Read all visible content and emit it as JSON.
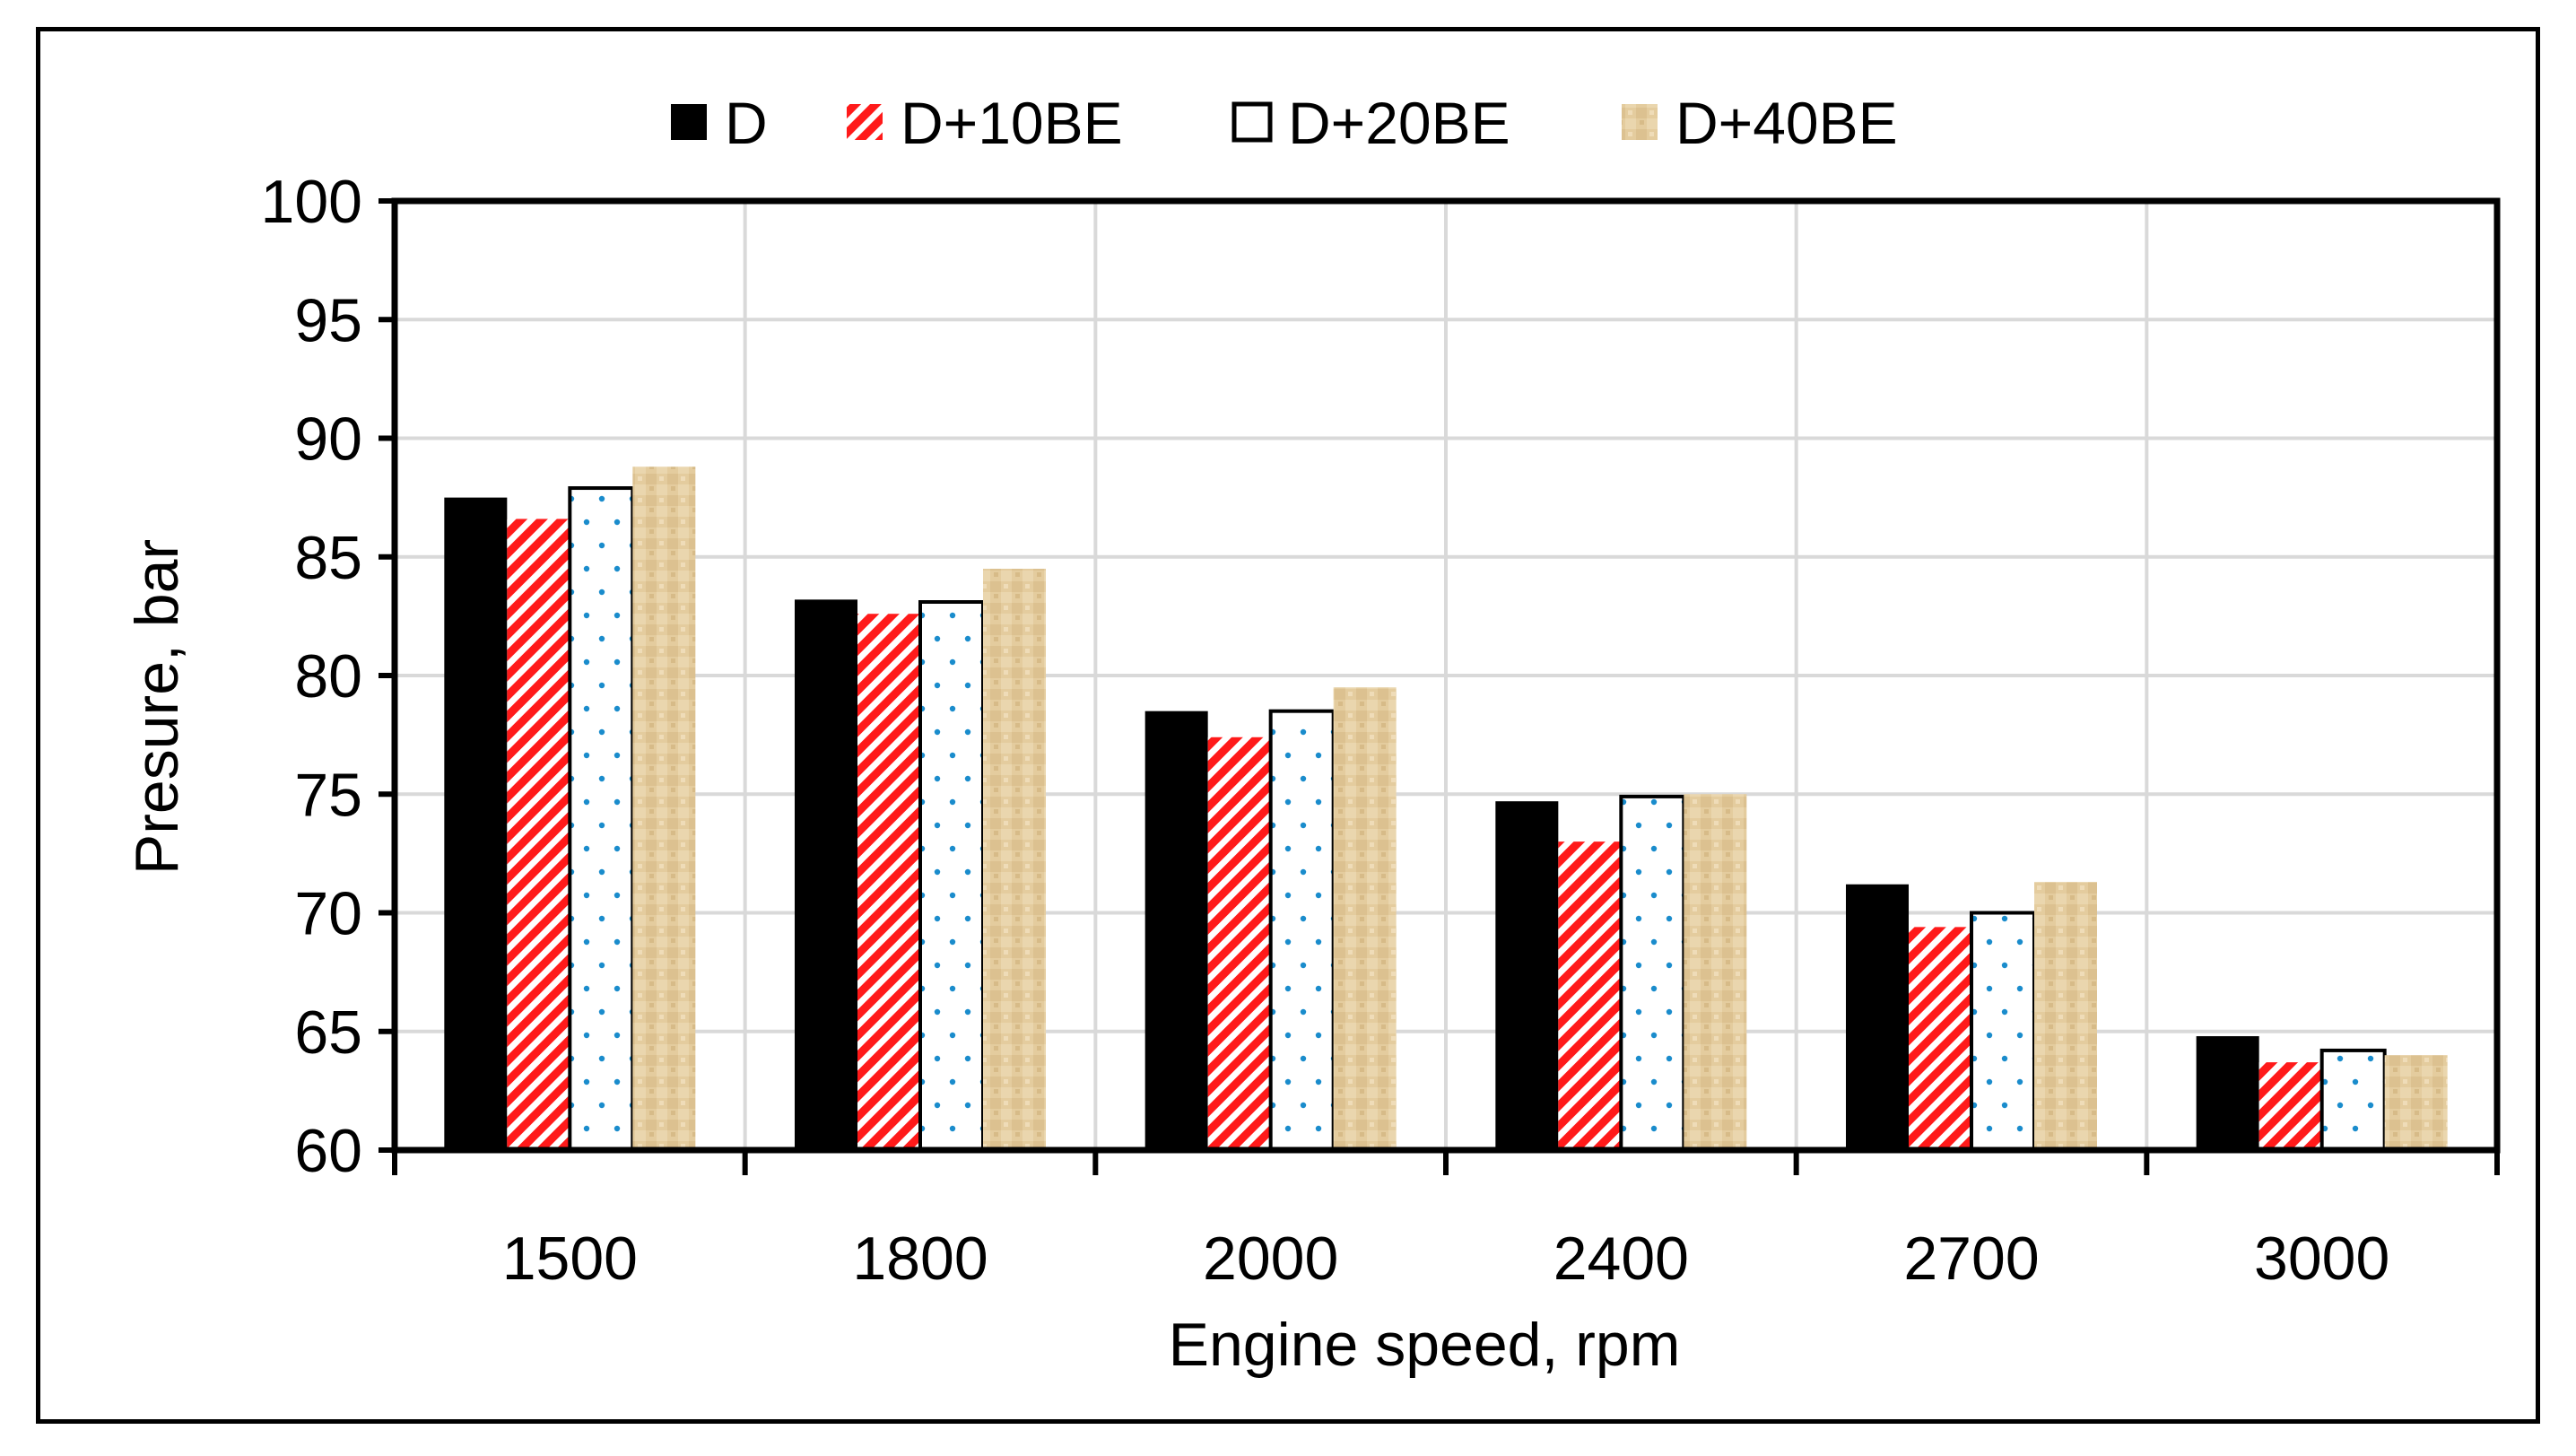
{
  "chart_data": {
    "type": "bar",
    "xlabel": "Engine speed, rpm",
    "ylabel": "Presure, bar",
    "categories": [
      "1500",
      "1800",
      "2000",
      "2400",
      "2700",
      "3000"
    ],
    "ylim": [
      60,
      100
    ],
    "ytick_step": 5,
    "yticks": [
      "60",
      "65",
      "70",
      "75",
      "80",
      "85",
      "90",
      "95",
      "100"
    ],
    "grid": true,
    "legend_position": "top",
    "series": [
      {
        "name": "D",
        "values": [
          87.5,
          83.2,
          78.5,
          74.7,
          71.2,
          64.8
        ],
        "fill": "solid",
        "color": "#000000"
      },
      {
        "name": "D+10BE",
        "values": [
          86.6,
          82.6,
          77.4,
          73.0,
          69.4,
          63.7
        ],
        "fill": "hatch",
        "color": "#ff1a1a"
      },
      {
        "name": "D+20BE",
        "values": [
          87.9,
          83.1,
          78.5,
          74.9,
          70.0,
          64.2
        ],
        "fill": "dots",
        "color": "#1a8ccc"
      },
      {
        "name": "D+40BE",
        "values": [
          88.8,
          84.5,
          79.5,
          75.0,
          71.3,
          64.0
        ],
        "fill": "texture",
        "color": "#e2c99a"
      }
    ]
  }
}
